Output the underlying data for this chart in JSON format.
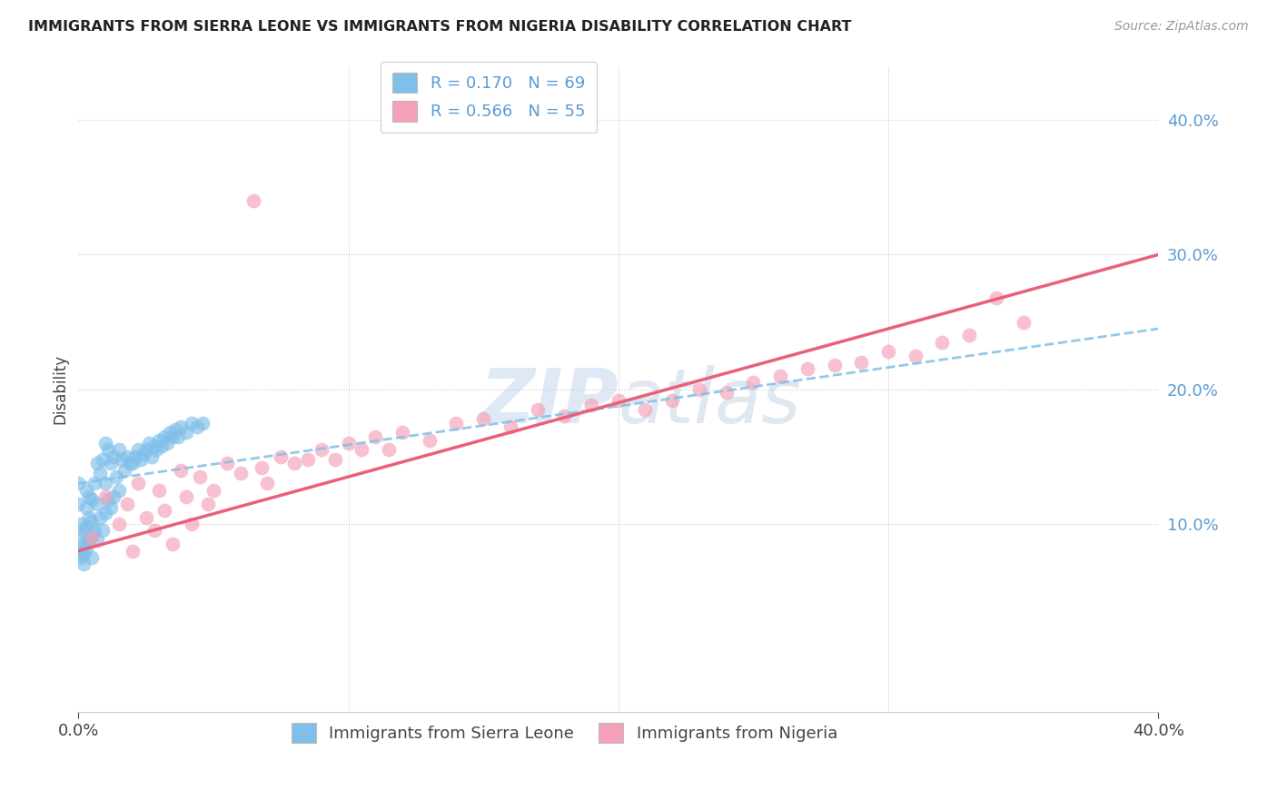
{
  "title": "IMMIGRANTS FROM SIERRA LEONE VS IMMIGRANTS FROM NIGERIA DISABILITY CORRELATION CHART",
  "source": "Source: ZipAtlas.com",
  "ylabel": "Disability",
  "ytick_vals": [
    0.1,
    0.2,
    0.3,
    0.4
  ],
  "ytick_labels": [
    "10.0%",
    "20.0%",
    "30.0%",
    "40.0%"
  ],
  "xlim": [
    0.0,
    0.4
  ],
  "ylim": [
    -0.04,
    0.44
  ],
  "sierra_leone_color": "#7fbfea",
  "nigeria_color": "#f4a0b8",
  "trend_sl_color": "#7fbfea",
  "trend_ng_color": "#e8607a",
  "sierra_leone_R": 0.17,
  "sierra_leone_N": 69,
  "nigeria_R": 0.566,
  "nigeria_N": 55,
  "watermark": "ZIPatlas",
  "sl_x": [
    0.0,
    0.0,
    0.001,
    0.001,
    0.001,
    0.001,
    0.002,
    0.002,
    0.002,
    0.002,
    0.003,
    0.003,
    0.003,
    0.003,
    0.004,
    0.004,
    0.004,
    0.005,
    0.005,
    0.005,
    0.005,
    0.006,
    0.006,
    0.007,
    0.007,
    0.007,
    0.008,
    0.008,
    0.009,
    0.009,
    0.01,
    0.01,
    0.01,
    0.011,
    0.011,
    0.012,
    0.012,
    0.013,
    0.013,
    0.014,
    0.015,
    0.015,
    0.016,
    0.017,
    0.018,
    0.019,
    0.02,
    0.021,
    0.022,
    0.023,
    0.024,
    0.025,
    0.026,
    0.027,
    0.028,
    0.029,
    0.03,
    0.031,
    0.032,
    0.033,
    0.034,
    0.035,
    0.036,
    0.037,
    0.038,
    0.04,
    0.042,
    0.044,
    0.046
  ],
  "sl_y": [
    0.13,
    0.115,
    0.1,
    0.09,
    0.08,
    0.075,
    0.095,
    0.085,
    0.078,
    0.07,
    0.125,
    0.112,
    0.098,
    0.082,
    0.12,
    0.105,
    0.088,
    0.118,
    0.102,
    0.092,
    0.075,
    0.13,
    0.095,
    0.145,
    0.115,
    0.088,
    0.138,
    0.105,
    0.148,
    0.095,
    0.16,
    0.13,
    0.108,
    0.155,
    0.118,
    0.145,
    0.112,
    0.15,
    0.12,
    0.135,
    0.155,
    0.125,
    0.148,
    0.14,
    0.15,
    0.145,
    0.145,
    0.15,
    0.155,
    0.148,
    0.152,
    0.155,
    0.16,
    0.15,
    0.158,
    0.155,
    0.162,
    0.158,
    0.165,
    0.16,
    0.168,
    0.165,
    0.17,
    0.165,
    0.172,
    0.168,
    0.175,
    0.172,
    0.175
  ],
  "ng_x": [
    0.005,
    0.01,
    0.015,
    0.018,
    0.02,
    0.022,
    0.025,
    0.028,
    0.03,
    0.032,
    0.035,
    0.038,
    0.04,
    0.042,
    0.045,
    0.048,
    0.05,
    0.055,
    0.06,
    0.065,
    0.068,
    0.07,
    0.075,
    0.08,
    0.085,
    0.09,
    0.095,
    0.1,
    0.105,
    0.11,
    0.115,
    0.12,
    0.13,
    0.14,
    0.15,
    0.16,
    0.17,
    0.18,
    0.19,
    0.2,
    0.21,
    0.22,
    0.23,
    0.24,
    0.25,
    0.26,
    0.27,
    0.28,
    0.29,
    0.3,
    0.31,
    0.32,
    0.33,
    0.34,
    0.35
  ],
  "ng_y": [
    0.09,
    0.12,
    0.1,
    0.115,
    0.08,
    0.13,
    0.105,
    0.095,
    0.125,
    0.11,
    0.085,
    0.14,
    0.12,
    0.1,
    0.135,
    0.115,
    0.125,
    0.145,
    0.138,
    0.34,
    0.142,
    0.13,
    0.15,
    0.145,
    0.148,
    0.155,
    0.148,
    0.16,
    0.155,
    0.165,
    0.155,
    0.168,
    0.162,
    0.175,
    0.178,
    0.172,
    0.185,
    0.18,
    0.188,
    0.192,
    0.185,
    0.192,
    0.2,
    0.198,
    0.205,
    0.21,
    0.215,
    0.218,
    0.22,
    0.228,
    0.225,
    0.235,
    0.24,
    0.268,
    0.25
  ]
}
